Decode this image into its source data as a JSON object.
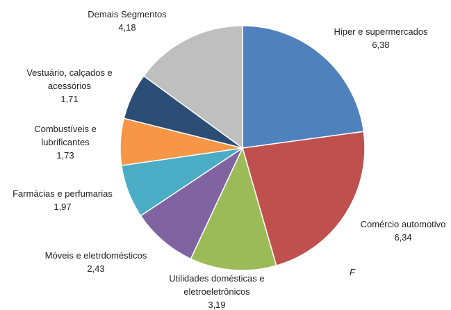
{
  "chart_data": {
    "type": "pie",
    "categories": [
      "Hiper e supermercados",
      "Comércio automotivo",
      "Utilidades domésticas e eletroeletrônicos",
      "Móveis e eletrdomésticos",
      "Farmácias e perfumarias",
      "Combustíveis e lubrificantes",
      "Vestuário, calçados e acessórios",
      "Demais Segmentos"
    ],
    "values": [
      6.38,
      6.34,
      3.19,
      2.43,
      1.97,
      1.73,
      1.71,
      4.18
    ],
    "value_labels": [
      "6,38",
      "6,34",
      "3,19",
      "2,43",
      "1,97",
      "1,73",
      "1,71",
      "4,18"
    ],
    "colors": [
      "#4f81bd",
      "#c0504d",
      "#9bbb59",
      "#8064a2",
      "#4bacc6",
      "#f79646",
      "#2c4d75",
      "#bfbfbf"
    ],
    "annotation": "F"
  }
}
